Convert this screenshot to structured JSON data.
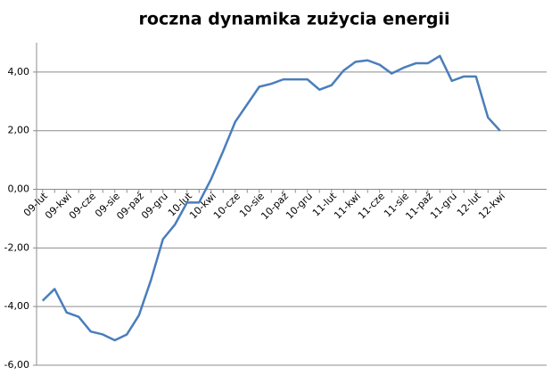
{
  "chart_data": {
    "type": "line",
    "title": "roczna dynamika zużycia energii",
    "categories": [
      "09-lut",
      null,
      "09-kwi",
      null,
      "09-cze",
      null,
      "09-sie",
      null,
      "09-paź",
      null,
      "09-gru",
      null,
      "10-lut",
      null,
      "10-kwi",
      null,
      "10-cze",
      null,
      "10-sie",
      null,
      "10-paź",
      null,
      "10-gru",
      null,
      "11-lut",
      null,
      "11-kwi",
      null,
      "11-cze",
      null,
      "11-sie",
      null,
      "11-paź",
      null,
      "11-gru",
      null,
      "12-lut",
      null,
      "12-kwi"
    ],
    "series": [
      {
        "color": "#4a7ebb",
        "values": [
          -3.8,
          -3.4,
          -4.2,
          -4.35,
          -4.85,
          -4.95,
          -5.15,
          -4.95,
          -4.3,
          -3.1,
          -1.7,
          -1.2,
          -0.45,
          -0.45,
          0.35,
          1.3,
          2.3,
          2.9,
          3.5,
          3.6,
          3.75,
          3.75,
          3.75,
          3.4,
          3.55,
          4.05,
          4.35,
          4.4,
          4.25,
          3.95,
          4.15,
          4.3,
          4.3,
          4.55,
          3.7,
          3.85,
          3.85,
          2.45,
          2.0
        ]
      }
    ],
    "ylim": [
      -6,
      5
    ],
    "yticks": [
      {
        "value": -6,
        "label": "-6,00"
      },
      {
        "value": -4,
        "label": "-4,00"
      },
      {
        "value": -2,
        "label": "-2,00"
      },
      {
        "value": 0,
        "label": "0,00"
      },
      {
        "value": 2,
        "label": "2,00"
      },
      {
        "value": 4,
        "label": "4,00"
      }
    ],
    "grid": true
  }
}
